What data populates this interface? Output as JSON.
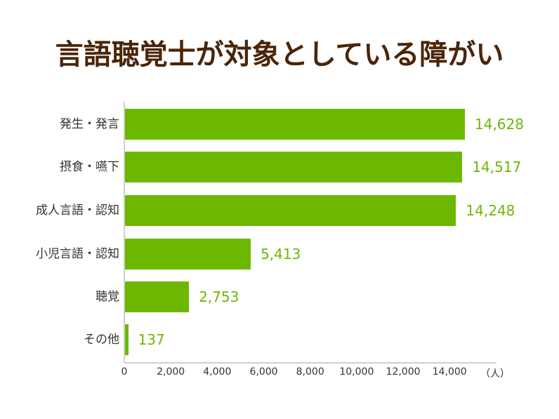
{
  "title": "言語聴覚士が対象としている障がい",
  "colors": {
    "bar": "#6cb800",
    "title": "#4a2508",
    "axis": "#cfcfcf",
    "text": "#333333"
  },
  "bars": [
    {
      "label": "発生・発言",
      "value": 14628,
      "display": "14,628"
    },
    {
      "label": "摂食・嚥下",
      "value": 14517,
      "display": "14,517"
    },
    {
      "label": "成人言語・認知",
      "value": 14248,
      "display": "14,248"
    },
    {
      "label": "小児言語・認知",
      "value": 5413,
      "display": "5,413"
    },
    {
      "label": "聴覚",
      "value": 2753,
      "display": "2,753"
    },
    {
      "label": "その他",
      "value": 137,
      "display": "137"
    }
  ],
  "x_axis": {
    "ticks": [
      "0",
      "2,000",
      "4,000",
      "6,000",
      "8,000",
      "10,000",
      "12,000",
      "14,000"
    ],
    "unit": "（人）"
  },
  "chart_data": {
    "type": "bar",
    "orientation": "horizontal",
    "title": "言語聴覚士が対象としている障がい",
    "categories": [
      "発生・発言",
      "摂食・嚥下",
      "成人言語・認知",
      "小児言語・認知",
      "聴覚",
      "その他"
    ],
    "values": [
      14628,
      14517,
      14248,
      5413,
      2753,
      137
    ],
    "xlabel": "（人）",
    "ylabel": "",
    "xlim": [
      0,
      16000
    ],
    "xticks": [
      0,
      2000,
      4000,
      6000,
      8000,
      10000,
      12000,
      14000
    ],
    "grid": false,
    "legend": null,
    "data_labels": true
  }
}
